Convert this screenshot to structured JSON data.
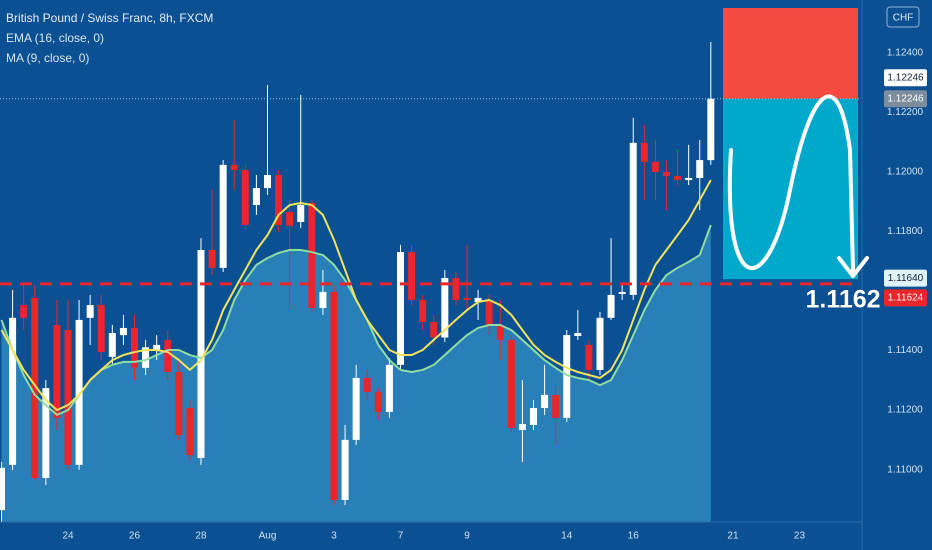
{
  "chart_data": {
    "type": "candlestick",
    "title": "British Pound / Swiss Franc, 8h, FXCM",
    "currency": "CHF",
    "categories": [
      null,
      null,
      null,
      null,
      null,
      null,
      "24",
      null,
      null,
      null,
      null,
      null,
      "26",
      null,
      null,
      null,
      null,
      null,
      "28",
      null,
      null,
      null,
      null,
      null,
      "Aug",
      null,
      null,
      null,
      null,
      null,
      "3",
      null,
      null,
      null,
      null,
      null,
      "7",
      null,
      null,
      null,
      null,
      null,
      "9",
      null,
      null,
      null,
      null,
      null,
      null,
      null,
      null,
      "14",
      null,
      null,
      null,
      null,
      null,
      "16",
      null,
      null,
      null,
      null,
      null,
      null,
      null,
      null,
      "21",
      null,
      null,
      null,
      null,
      null,
      "23",
      null,
      null,
      null,
      null,
      null
    ],
    "open": [
      1.10864,
      1.11016,
      1.11553,
      1.11577,
      1.10972,
      1.11486,
      1.11469,
      1.11016,
      1.1151,
      1.11553,
      1.11379,
      1.11452,
      1.11476,
      1.11342,
      1.11402,
      1.11436,
      1.11328,
      1.11207,
      1.11039,
      1.11738,
      1.11678,
      1.12024,
      1.12007,
      1.11889,
      1.11946,
      1.1199,
      1.11866,
      1.11832,
      1.11896,
      1.11543,
      1.11597,
      1.10898,
      1.111,
      1.11308,
      1.11261,
      1.11194,
      1.11352,
      1.11731,
      1.1157,
      1.11496,
      1.11444,
      1.11644,
      1.11577,
      1.11563,
      1.1157,
      1.11486,
      1.11436,
      1.11133,
      1.1115,
      1.11207,
      1.11251,
      1.11174,
      1.11449,
      1.11419,
      1.11335,
      1.1151,
      1.1159,
      1.11587,
      1.12098,
      1.12034,
      1.12,
      1.11987,
      1.11973,
      1.1198,
      1.1204,
      null,
      null,
      null,
      null,
      null,
      null,
      null,
      null,
      null,
      null,
      null,
      null,
      null
    ],
    "high": [
      1.11026,
      1.11604,
      1.1162,
      1.1162,
      1.11301,
      1.1157,
      1.1157,
      1.1157,
      1.11587,
      1.11587,
      1.11486,
      1.1152,
      1.1152,
      1.11436,
      1.11452,
      1.11469,
      1.11368,
      1.11234,
      1.11778,
      1.1194,
      1.1204,
      1.12175,
      1.12024,
      1.1199,
      1.12292,
      1.12007,
      1.11906,
      1.12259,
      1.11906,
      1.11671,
      1.1162,
      1.1115,
      1.11352,
      1.11335,
      1.11274,
      1.11375,
      1.11755,
      1.11755,
      1.11587,
      1.1152,
      1.11671,
      1.11664,
      1.11755,
      1.11604,
      1.11587,
      1.1157,
      1.11452,
      1.11301,
      1.11234,
      1.11352,
      1.11284,
      1.11469,
      1.11536,
      1.11436,
      1.1153,
      1.11778,
      1.1162,
      1.12182,
      1.12158,
      1.12108,
      1.1204,
      1.12074,
      1.12091,
      1.12108,
      1.12437,
      null,
      null,
      null,
      null,
      null,
      null,
      null,
      null,
      null,
      null,
      null,
      null,
      null
    ],
    "low": [
      1.10824,
      1.10999,
      1.11469,
      1.10965,
      1.10948,
      1.11133,
      1.10999,
      1.10999,
      1.11419,
      1.11368,
      1.11352,
      1.11419,
      1.11301,
      1.11318,
      1.11368,
      1.11301,
      1.111,
      1.11032,
      1.11016,
      1.11654,
      1.11664,
      1.1194,
      1.11805,
      1.11856,
      1.11923,
      1.11799,
      1.11536,
      1.11812,
      1.1153,
      1.1152,
      1.10881,
      1.10881,
      1.11083,
      1.11234,
      1.11167,
      1.11174,
      1.11335,
      1.11553,
      1.11469,
      1.11419,
      1.11429,
      1.11553,
      1.11536,
      1.11503,
      1.11452,
      1.11368,
      1.11127,
      1.11026,
      1.11133,
      1.11184,
      1.11083,
      1.1116,
      1.11436,
      1.11301,
      1.11318,
      1.11503,
      1.1157,
      1.1157,
      1.11906,
      1.11906,
      1.11872,
      1.11956,
      1.11956,
      1.11872,
      1.12024,
      null,
      null,
      null,
      null,
      null,
      null,
      null,
      null,
      null,
      null,
      null,
      null,
      null
    ],
    "close": [
      1.11006,
      1.1151,
      1.1151,
      1.10972,
      1.11274,
      1.11174,
      1.11016,
      1.11503,
      1.11553,
      1.11395,
      1.11459,
      1.11476,
      1.11342,
      1.11411,
      1.11419,
      1.11328,
      1.11116,
      1.11049,
      1.11738,
      1.11678,
      1.12024,
      1.12007,
      1.11822,
      1.11946,
      1.1199,
      1.11822,
      1.11819,
      1.11889,
      1.11543,
      1.11597,
      1.10898,
      1.111,
      1.11308,
      1.11261,
      1.11194,
      1.11352,
      1.11731,
      1.1157,
      1.11496,
      1.11444,
      1.11644,
      1.1157,
      1.1157,
      1.11577,
      1.11486,
      1.11436,
      1.1114,
      1.11153,
      1.11207,
      1.11251,
      1.11174,
      1.11452,
      1.11459,
      1.11335,
      1.1151,
      1.11587,
      1.11597,
      1.12098,
      1.12034,
      1.12,
      1.11987,
      1.11973,
      1.1198,
      1.1204,
      1.12246,
      null,
      null,
      null,
      null,
      null,
      null,
      null,
      null,
      null,
      null,
      null,
      null,
      null
    ],
    "up_color": "#ffffff",
    "down_color": "#e8262b",
    "series": [
      {
        "name": "EMA (16, close, 0)",
        "color": "#f2e35c",
        "values": [
          1.11469,
          1.11402,
          1.11335,
          1.11284,
          1.11234,
          1.112,
          1.11217,
          1.11251,
          1.11301,
          1.11335,
          1.11368,
          1.11385,
          1.11395,
          1.11402,
          1.11402,
          1.11395,
          1.11368,
          1.11335,
          1.11368,
          1.11436,
          1.11536,
          1.11604,
          1.11671,
          1.11738,
          1.11788,
          1.11856,
          1.11889,
          1.11896,
          1.11889,
          1.11856,
          1.11772,
          1.11671,
          1.1157,
          1.11503,
          1.11452,
          1.11402,
          1.11385,
          1.11385,
          1.11402,
          1.11436,
          1.11469,
          1.11503,
          1.11536,
          1.11563,
          1.1157,
          1.11553,
          1.1152,
          1.11469,
          1.11419,
          1.11385,
          1.11362,
          1.11342,
          1.11328,
          1.11318,
          1.11308,
          1.11335,
          1.11402,
          1.11503,
          1.11604,
          1.11688,
          1.11738,
          1.11788,
          1.11839,
          1.11906,
          1.11973,
          null,
          null,
          null,
          null,
          null,
          null,
          null,
          null,
          null,
          null,
          null,
          null,
          null
        ]
      },
      {
        "name": "MA (9, close, 0)",
        "color": "#8fdca0",
        "fill": "#2f88bf",
        "values": [
          1.11503,
          1.11402,
          1.11318,
          1.11251,
          1.11217,
          1.11184,
          1.112,
          1.11251,
          1.11301,
          1.11335,
          1.11352,
          1.11362,
          1.11362,
          1.11368,
          1.11385,
          1.11402,
          1.11402,
          1.11385,
          1.11375,
          1.11402,
          1.11469,
          1.1157,
          1.11637,
          1.11688,
          1.11711,
          1.11728,
          1.11738,
          1.11738,
          1.11731,
          1.11721,
          1.11688,
          1.11637,
          1.1157,
          1.11503,
          1.11419,
          1.11368,
          1.11335,
          1.11328,
          1.11335,
          1.11352,
          1.11385,
          1.11419,
          1.11452,
          1.11476,
          1.11486,
          1.11486,
          1.11469,
          1.11436,
          1.11402,
          1.11368,
          1.11342,
          1.11318,
          1.11308,
          1.11301,
          1.11284,
          1.11301,
          1.11368,
          1.11452,
          1.11536,
          1.11604,
          1.11654,
          1.11678,
          1.11698,
          1.11721,
          1.11822,
          null,
          null,
          null,
          null,
          null,
          null,
          null,
          null,
          null,
          null,
          null,
          null,
          null
        ]
      }
    ],
    "ylim": [
      1.10824,
      1.12578
    ],
    "yticks": [
      {
        "value": 1.124,
        "label": "1.12400"
      },
      {
        "value": 1.122,
        "label": "1.12200"
      },
      {
        "value": 1.12,
        "label": "1.12000"
      },
      {
        "value": 1.118,
        "label": "1.11800"
      },
      {
        "value": 1.114,
        "label": "1.11400"
      },
      {
        "value": 1.112,
        "label": "1.11200"
      },
      {
        "value": 1.11,
        "label": "1.11000"
      }
    ],
    "grid": false,
    "last_price": {
      "value": 1.12246,
      "label": "1.12246"
    },
    "position": {
      "entry": {
        "value": 1.12246,
        "label": "1.12246"
      },
      "stop": 1.12551,
      "target": {
        "value": 1.1164,
        "label": "1.11640"
      },
      "stop_color": "#f44a3f",
      "target_color": "#00a9cc"
    },
    "level": {
      "value": 1.11624,
      "label": "1.11624",
      "annotation": "1.1162",
      "color": "#e8262b"
    }
  }
}
